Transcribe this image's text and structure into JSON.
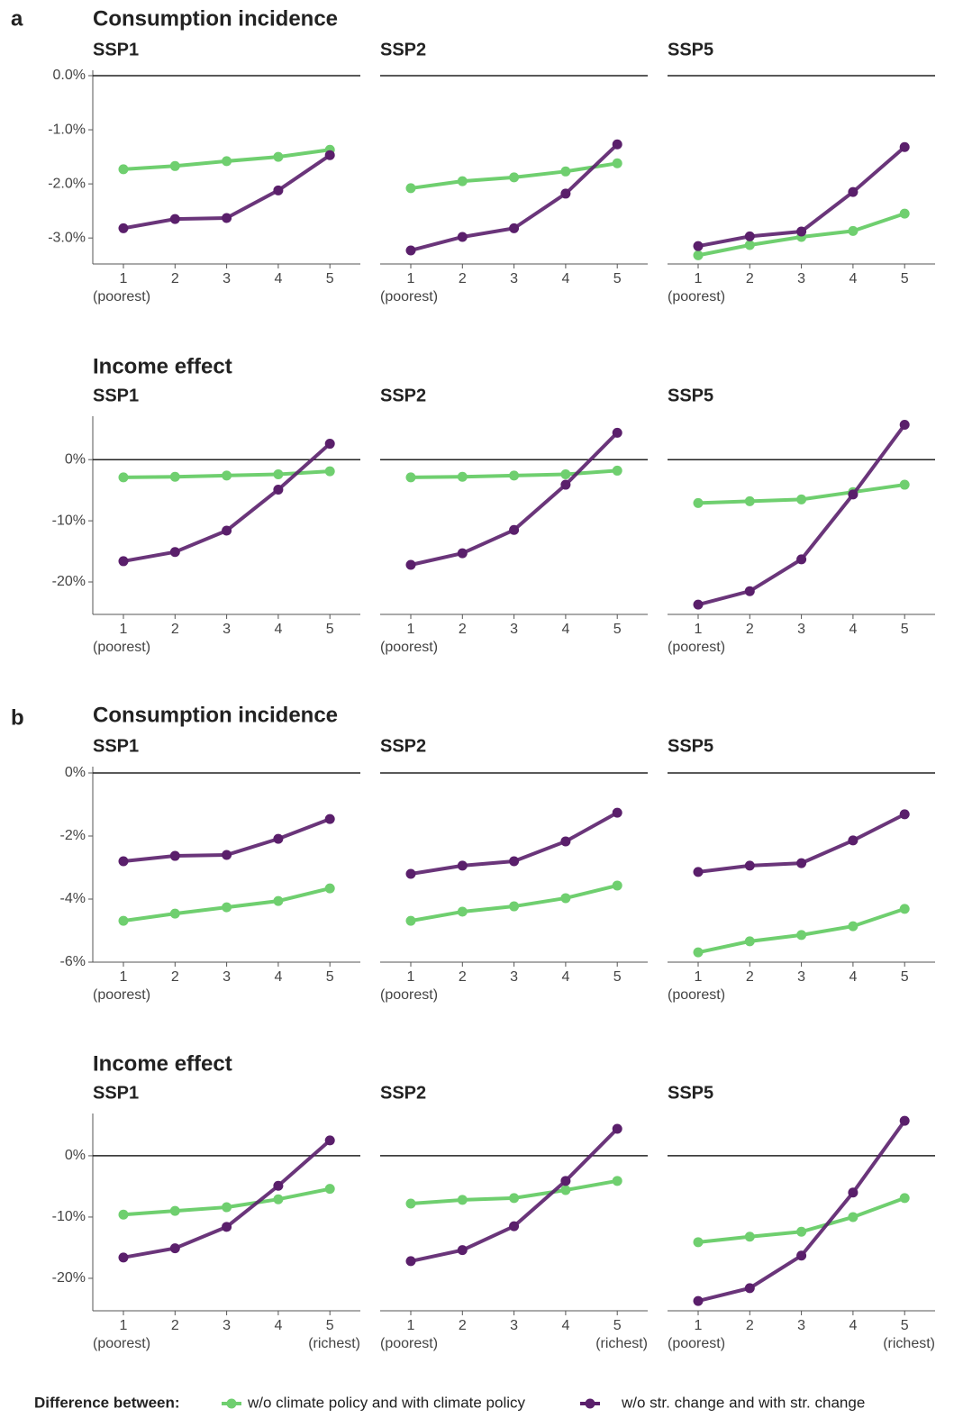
{
  "figure": {
    "labels": [
      "a",
      "b"
    ],
    "row_titles": [
      "Consumption incidence",
      "Income effect",
      "Consumption incidence",
      "Income effect"
    ],
    "legend_title": "Difference between:"
  },
  "chart_data": [
    {
      "type": "line",
      "title": "SSP1",
      "categories": [
        "1",
        "2",
        "3",
        "4",
        "5"
      ],
      "x_sublabels": [
        "(poorest)",
        null,
        null,
        null,
        null
      ],
      "ylim": [
        -3.48,
        0.1
      ],
      "yticks": [
        {
          "value": 0,
          "label": "0.0%"
        },
        {
          "value": -1,
          "label": "-1.0%"
        },
        {
          "value": -2,
          "label": "-2.0%"
        },
        {
          "value": -3,
          "label": "-3.0%"
        }
      ],
      "reference_line": 0,
      "series": [
        {
          "name": "w/o climate policy and with climate policy",
          "color": "#6fcf6f",
          "values": [
            -1.73,
            -1.67,
            -1.58,
            -1.5,
            -1.37
          ]
        },
        {
          "name": "w/o str. change and with str. change",
          "color": "#5a1f6b",
          "values": [
            -2.82,
            -2.65,
            -2.63,
            -2.12,
            -1.47
          ]
        }
      ]
    },
    {
      "type": "line",
      "title": "SSP2",
      "categories": [
        "1",
        "2",
        "3",
        "4",
        "5"
      ],
      "x_sublabels": [
        "(poorest)",
        null,
        null,
        null,
        null
      ],
      "ylim": [
        -3.48,
        0.1
      ],
      "reference_line": 0,
      "series": [
        {
          "name": "w/o climate policy and with climate policy",
          "color": "#6fcf6f",
          "values": [
            -2.08,
            -1.95,
            -1.88,
            -1.77,
            -1.62
          ]
        },
        {
          "name": "w/o str. change and with str. change",
          "color": "#5a1f6b",
          "values": [
            -3.23,
            -2.98,
            -2.82,
            -2.18,
            -1.27
          ]
        }
      ]
    },
    {
      "type": "line",
      "title": "SSP5",
      "categories": [
        "1",
        "2",
        "3",
        "4",
        "5"
      ],
      "x_sublabels": [
        "(poorest)",
        null,
        null,
        null,
        null
      ],
      "ylim": [
        -3.48,
        0.1
      ],
      "reference_line": 0,
      "series": [
        {
          "name": "w/o climate policy and with climate policy",
          "color": "#6fcf6f",
          "values": [
            -3.32,
            -3.13,
            -2.98,
            -2.87,
            -2.55
          ]
        },
        {
          "name": "w/o str. change and with str. change",
          "color": "#5a1f6b",
          "values": [
            -3.15,
            -2.97,
            -2.88,
            -2.15,
            -1.32
          ]
        }
      ]
    },
    {
      "type": "line",
      "title": "SSP1",
      "categories": [
        "1",
        "2",
        "3",
        "4",
        "5"
      ],
      "x_sublabels": [
        "(poorest)",
        null,
        null,
        null,
        null
      ],
      "ylim": [
        -25.3,
        7.1
      ],
      "yticks": [
        {
          "value": 0,
          "label": "0%"
        },
        {
          "value": -10,
          "label": "-10%"
        },
        {
          "value": -20,
          "label": "-20%"
        }
      ],
      "reference_line": 0,
      "series": [
        {
          "name": "w/o climate policy and with climate policy",
          "color": "#6fcf6f",
          "values": [
            -2.9,
            -2.8,
            -2.6,
            -2.4,
            -1.9
          ]
        },
        {
          "name": "w/o str. change and with str. change",
          "color": "#5a1f6b",
          "values": [
            -16.6,
            -15.1,
            -11.6,
            -4.9,
            2.6
          ]
        }
      ]
    },
    {
      "type": "line",
      "title": "SSP2",
      "categories": [
        "1",
        "2",
        "3",
        "4",
        "5"
      ],
      "x_sublabels": [
        "(poorest)",
        null,
        null,
        null,
        null
      ],
      "ylim": [
        -25.3,
        7.1
      ],
      "reference_line": 0,
      "series": [
        {
          "name": "w/o climate policy and with climate policy",
          "color": "#6fcf6f",
          "values": [
            -2.9,
            -2.8,
            -2.6,
            -2.4,
            -1.8
          ]
        },
        {
          "name": "w/o str. change and with str. change",
          "color": "#5a1f6b",
          "values": [
            -17.2,
            -15.3,
            -11.5,
            -4.1,
            4.4
          ]
        }
      ]
    },
    {
      "type": "line",
      "title": "SSP5",
      "categories": [
        "1",
        "2",
        "3",
        "4",
        "5"
      ],
      "x_sublabels": [
        "(poorest)",
        null,
        null,
        null,
        null
      ],
      "ylim": [
        -25.3,
        7.1
      ],
      "reference_line": 0,
      "series": [
        {
          "name": "w/o climate policy and with climate policy",
          "color": "#6fcf6f",
          "values": [
            -7.1,
            -6.8,
            -6.5,
            -5.3,
            -4.1
          ]
        },
        {
          "name": "w/o str. change and with str. change",
          "color": "#5a1f6b",
          "values": [
            -23.7,
            -21.5,
            -16.3,
            -5.7,
            5.7
          ]
        }
      ]
    },
    {
      "type": "line",
      "title": "SSP1",
      "categories": [
        "1",
        "2",
        "3",
        "4",
        "5"
      ],
      "x_sublabels": [
        "(poorest)",
        null,
        null,
        null,
        null
      ],
      "ylim": [
        -6,
        0.2
      ],
      "yticks": [
        {
          "value": 0,
          "label": "0%"
        },
        {
          "value": -2,
          "label": "-2%"
        },
        {
          "value": -4,
          "label": "-4%"
        },
        {
          "value": -6,
          "label": "-6%"
        }
      ],
      "reference_line": 0,
      "series": [
        {
          "name": "w/o climate policy and with climate policy",
          "color": "#6fcf6f",
          "values": [
            -4.69,
            -4.46,
            -4.26,
            -4.06,
            -3.66
          ]
        },
        {
          "name": "w/o str. change and with str. change",
          "color": "#5a1f6b",
          "values": [
            -2.8,
            -2.63,
            -2.6,
            -2.09,
            -1.46
          ]
        }
      ]
    },
    {
      "type": "line",
      "title": "SSP2",
      "categories": [
        "1",
        "2",
        "3",
        "4",
        "5"
      ],
      "x_sublabels": [
        "(poorest)",
        null,
        null,
        null,
        null
      ],
      "ylim": [
        -6,
        0.2
      ],
      "reference_line": 0,
      "series": [
        {
          "name": "w/o climate policy and with climate policy",
          "color": "#6fcf6f",
          "values": [
            -4.69,
            -4.4,
            -4.23,
            -3.97,
            -3.57
          ]
        },
        {
          "name": "w/o str. change and with str. change",
          "color": "#5a1f6b",
          "values": [
            -3.2,
            -2.94,
            -2.8,
            -2.17,
            -1.26
          ]
        }
      ]
    },
    {
      "type": "line",
      "title": "SSP5",
      "categories": [
        "1",
        "2",
        "3",
        "4",
        "5"
      ],
      "x_sublabels": [
        "(poorest)",
        null,
        null,
        null,
        null
      ],
      "ylim": [
        -6,
        0.2
      ],
      "reference_line": 0,
      "series": [
        {
          "name": "w/o climate policy and with climate policy",
          "color": "#6fcf6f",
          "values": [
            -5.69,
            -5.34,
            -5.14,
            -4.86,
            -4.31
          ]
        },
        {
          "name": "w/o str. change and with str. change",
          "color": "#5a1f6b",
          "values": [
            -3.14,
            -2.94,
            -2.86,
            -2.14,
            -1.31
          ]
        }
      ]
    },
    {
      "type": "line",
      "title": "SSP1",
      "categories": [
        "1",
        "2",
        "3",
        "4",
        "5"
      ],
      "x_sublabels": [
        "(poorest)",
        null,
        null,
        null,
        "(richest)"
      ],
      "ylim": [
        -25.3,
        6.9
      ],
      "yticks": [
        {
          "value": 0,
          "label": "0%"
        },
        {
          "value": -10,
          "label": "-10%"
        },
        {
          "value": -20,
          "label": "-20%"
        }
      ],
      "reference_line": 0,
      "series": [
        {
          "name": "w/o climate policy and with climate policy",
          "color": "#6fcf6f",
          "values": [
            -9.6,
            -9.0,
            -8.4,
            -7.1,
            -5.4
          ]
        },
        {
          "name": "w/o str. change and with str. change",
          "color": "#5a1f6b",
          "values": [
            -16.6,
            -15.1,
            -11.6,
            -4.9,
            2.5
          ]
        }
      ]
    },
    {
      "type": "line",
      "title": "SSP2",
      "categories": [
        "1",
        "2",
        "3",
        "4",
        "5"
      ],
      "x_sublabels": [
        "(poorest)",
        null,
        null,
        null,
        "(richest)"
      ],
      "ylim": [
        -25.3,
        6.9
      ],
      "reference_line": 0,
      "series": [
        {
          "name": "w/o climate policy and with climate policy",
          "color": "#6fcf6f",
          "values": [
            -7.8,
            -7.2,
            -6.9,
            -5.6,
            -4.1
          ]
        },
        {
          "name": "w/o str. change and with str. change",
          "color": "#5a1f6b",
          "values": [
            -17.2,
            -15.4,
            -11.5,
            -4.1,
            4.4
          ]
        }
      ]
    },
    {
      "type": "line",
      "title": "SSP5",
      "categories": [
        "1",
        "2",
        "3",
        "4",
        "5"
      ],
      "x_sublabels": [
        "(poorest)",
        null,
        null,
        null,
        "(richest)"
      ],
      "ylim": [
        -25.3,
        6.9
      ],
      "reference_line": 0,
      "series": [
        {
          "name": "w/o climate policy and with climate policy",
          "color": "#6fcf6f",
          "values": [
            -14.1,
            -13.2,
            -12.4,
            -10.0,
            -6.9
          ]
        },
        {
          "name": "w/o str. change and with str. change",
          "color": "#5a1f6b",
          "values": [
            -23.7,
            -21.6,
            -16.3,
            -6.0,
            5.7
          ]
        }
      ]
    }
  ]
}
